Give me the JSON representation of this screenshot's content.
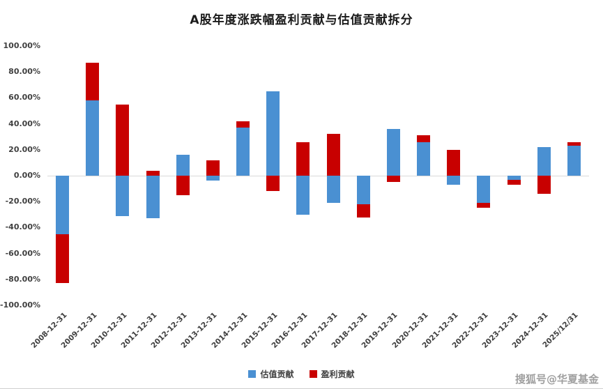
{
  "title": "A股年度涨跌幅盈利贡献与估值贡献拆分",
  "watermark": "搜狐号@华夏基金",
  "colors": {
    "valuation_blue": "#4A90D2",
    "earnings_red": "#C80000",
    "zero_line": "#d9d9d9"
  },
  "legend": [
    {
      "label": "估值贡献",
      "color": "#4A90D2"
    },
    {
      "label": "盈利贡献",
      "color": "#C80000"
    }
  ],
  "chart_data": {
    "type": "bar",
    "stacked": true,
    "title": "A股年度涨跌幅盈利贡献与估值贡献拆分",
    "xlabel": "",
    "ylabel": "",
    "ylim": [
      -100,
      100
    ],
    "y_tick_step": 20,
    "y_tick_labels": [
      "100.00%",
      "80.00%",
      "60.00%",
      "40.00%",
      "20.00%",
      "0.00%",
      "-20.00%",
      "-40.00%",
      "-60.00%",
      "-80.00%",
      "-100.00%"
    ],
    "grid": false,
    "legend_position": "bottom",
    "categories": [
      "2008-12-31",
      "2009-12-31",
      "2010-12-31",
      "2011-12-31",
      "2012-12-31",
      "2013-12-31",
      "2014-12-31",
      "2015-12-31",
      "2016-12-31",
      "2017-12-31",
      "2018-12-31",
      "2019-12-31",
      "2020-12-31",
      "2021-12-31",
      "2022-12-31",
      "2023-12-31",
      "2024-12-31",
      "2025/12/31"
    ],
    "series": [
      {
        "name": "估值贡献",
        "color": "#4A90D2",
        "values": [
          -45,
          58,
          -31,
          -33,
          16,
          -4,
          37,
          65,
          -30,
          -21,
          -22,
          36,
          26,
          -7,
          -21,
          -3,
          22,
          23
        ]
      },
      {
        "name": "盈利贡献",
        "color": "#C80000",
        "values": [
          -38,
          29,
          55,
          4,
          -15,
          12,
          5,
          -12,
          26,
          32,
          -10,
          -5,
          5,
          20,
          -4,
          -4,
          -14,
          3
        ]
      }
    ]
  }
}
